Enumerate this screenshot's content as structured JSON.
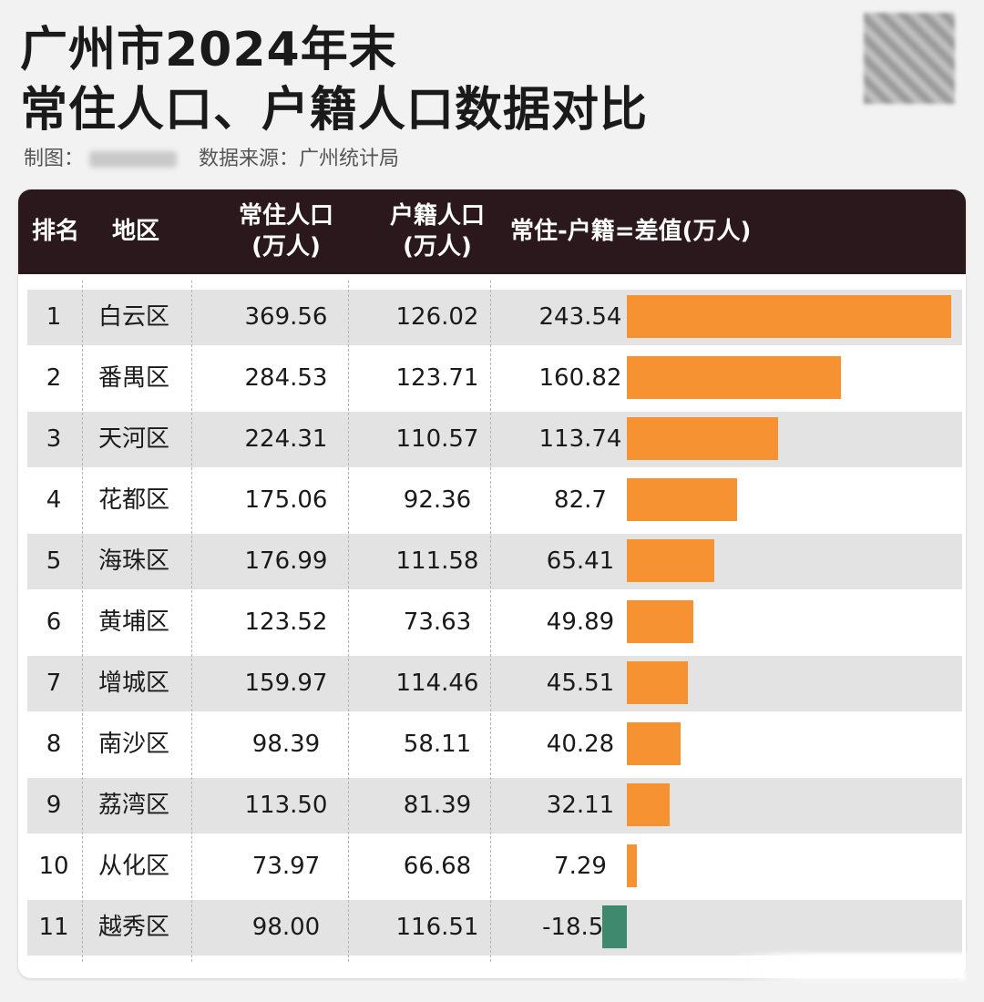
{
  "header": {
    "title_line1": "广州市2024年末",
    "title_line2": "常住人口、户籍人口数据对比",
    "credit_prefix": "制图：",
    "source": "数据来源：广州统计局"
  },
  "table": {
    "columns": {
      "rank": "排名",
      "district": "地区",
      "resident_line1": "常住人口",
      "resident_line2": "(万人)",
      "household_line1": "户籍人口",
      "household_line2": "(万人)",
      "difference": "常住-户籍=差值(万人)"
    },
    "colors": {
      "header_bg": "#2a181c",
      "positive_bar": "#f79232",
      "negative_bar": "#3f8a6e",
      "row_shade": "#e3e3e3"
    }
  },
  "chart_data": {
    "type": "table",
    "columns": [
      "排名",
      "地区",
      "常住人口(万人)",
      "户籍人口(万人)",
      "常住-户籍=差值(万人)"
    ],
    "rows": [
      {
        "rank": "1",
        "district": "白云区",
        "resident": "369.56",
        "household": "126.02",
        "diff": "243.54",
        "value": 243.54
      },
      {
        "rank": "2",
        "district": "番禺区",
        "resident": "284.53",
        "household": "123.71",
        "diff": "160.82",
        "value": 160.82
      },
      {
        "rank": "3",
        "district": "天河区",
        "resident": "224.31",
        "household": "110.57",
        "diff": "113.74",
        "value": 113.74
      },
      {
        "rank": "4",
        "district": "花都区",
        "resident": "175.06",
        "household": "92.36",
        "diff": "82.7",
        "value": 82.7
      },
      {
        "rank": "5",
        "district": "海珠区",
        "resident": "176.99",
        "household": "111.58",
        "diff": "65.41",
        "value": 65.41
      },
      {
        "rank": "6",
        "district": "黄埔区",
        "resident": "123.52",
        "household": "73.63",
        "diff": "49.89",
        "value": 49.89
      },
      {
        "rank": "7",
        "district": "增城区",
        "resident": "159.97",
        "household": "114.46",
        "diff": "45.51",
        "value": 45.51
      },
      {
        "rank": "8",
        "district": "南沙区",
        "resident": "98.39",
        "household": "58.11",
        "diff": "40.28",
        "value": 40.28
      },
      {
        "rank": "9",
        "district": "荔湾区",
        "resident": "113.50",
        "household": "81.39",
        "diff": "32.11",
        "value": 32.11
      },
      {
        "rank": "10",
        "district": "从化区",
        "resident": "73.97",
        "household": "66.68",
        "diff": "7.29",
        "value": 7.29
      },
      {
        "rank": "11",
        "district": "越秀区",
        "resident": "98.00",
        "household": "116.51",
        "diff": "-18.51",
        "value": -18.51
      }
    ]
  }
}
